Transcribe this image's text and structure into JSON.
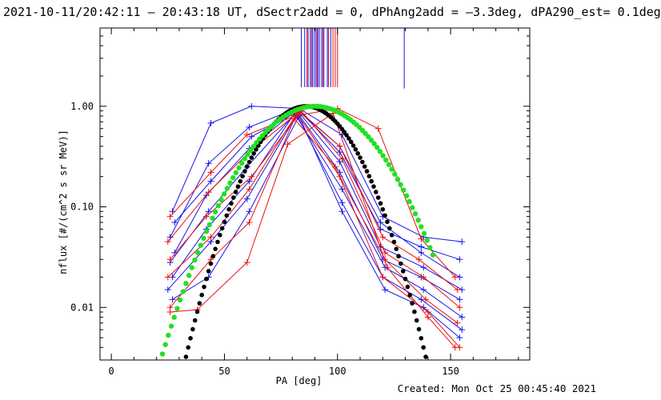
{
  "header": {
    "title": "2021-10-11/20:42:11 – 20:43:18 UT, dSectr2add = 0, dPhAng2add = –3.3deg, dPA290_est=  0.1deg"
  },
  "footer": {
    "created": "Created: Mon Oct 25 00:45:40 2021"
  },
  "chart_data": {
    "type": "line",
    "title": "",
    "xlabel": "PA [deg]",
    "ylabel": "nflux [#/(cm^2 s sr MeV)]",
    "xlim": [
      -5,
      185
    ],
    "ylim": [
      0.003,
      6.0
    ],
    "yscale": "log",
    "grid": false,
    "x_ticks": [
      0,
      50,
      100,
      150
    ],
    "x_tick_labels": [
      "0",
      "50",
      "100",
      "150"
    ],
    "y_ticks": [
      0.01,
      0.1,
      1.0
    ],
    "y_tick_labels": [
      "0.01",
      "0.10",
      "1.00"
    ],
    "colors": {
      "red": "#e81010",
      "blue": "#1616e8",
      "black": "#000000",
      "green": "#22e022"
    },
    "vertical_markers": [
      {
        "color": "blue",
        "x": [
          84,
          85.5,
          87,
          88,
          89,
          89.8,
          90.5,
          91.3,
          92,
          93,
          94,
          95.5,
          97,
          129.5
        ]
      },
      {
        "color": "red",
        "x": [
          86.5,
          88.5,
          91,
          93.5,
          96,
          98,
          99,
          100
        ]
      }
    ],
    "series": [
      {
        "color": "blue",
        "marker": "plus",
        "x": [
          27,
          44,
          62,
          83,
          102,
          120,
          138,
          155
        ],
        "y": [
          0.09,
          0.68,
          1.0,
          0.95,
          0.52,
          0.08,
          0.05,
          0.045
        ]
      },
      {
        "color": "blue",
        "marker": "plus",
        "x": [
          26,
          43,
          61,
          82,
          101,
          119,
          137,
          154
        ],
        "y": [
          0.05,
          0.27,
          0.62,
          0.95,
          0.35,
          0.06,
          0.04,
          0.03
        ]
      },
      {
        "color": "blue",
        "marker": "plus",
        "x": [
          28,
          42,
          61,
          82,
          101,
          119,
          138,
          155
        ],
        "y": [
          0.035,
          0.13,
          0.38,
          0.92,
          0.28,
          0.04,
          0.025,
          0.015
        ]
      },
      {
        "color": "blue",
        "marker": "plus",
        "x": [
          26,
          43,
          60,
          82,
          101,
          120,
          137,
          154
        ],
        "y": [
          0.028,
          0.09,
          0.25,
          0.88,
          0.22,
          0.03,
          0.02,
          0.012
        ]
      },
      {
        "color": "blue",
        "marker": "plus",
        "x": [
          27,
          42,
          61,
          81,
          102,
          121,
          138,
          155
        ],
        "y": [
          0.02,
          0.06,
          0.18,
          0.85,
          0.15,
          0.025,
          0.015,
          0.008
        ]
      },
      {
        "color": "blue",
        "marker": "plus",
        "x": [
          25,
          44,
          60,
          82,
          102,
          120,
          137,
          155
        ],
        "y": [
          0.015,
          0.045,
          0.12,
          0.82,
          0.11,
          0.02,
          0.012,
          0.006
        ]
      },
      {
        "color": "blue",
        "marker": "plus",
        "x": [
          27,
          43,
          61,
          83,
          102,
          121,
          138,
          154
        ],
        "y": [
          0.012,
          0.02,
          0.09,
          0.8,
          0.09,
          0.015,
          0.01,
          0.005
        ]
      },
      {
        "color": "blue",
        "marker": "plus",
        "x": [
          28,
          44,
          62,
          83,
          101,
          119,
          137,
          154
        ],
        "y": [
          0.07,
          0.18,
          0.5,
          0.9,
          0.4,
          0.07,
          0.035,
          0.02
        ]
      },
      {
        "color": "red",
        "marker": "plus",
        "x": [
          26,
          44,
          60,
          81,
          100,
          118,
          137,
          152
        ],
        "y": [
          0.08,
          0.22,
          0.52,
          0.8,
          0.95,
          0.6,
          0.048,
          0.02
        ]
      },
      {
        "color": "red",
        "marker": "plus",
        "x": [
          25,
          43,
          61,
          83,
          101,
          120,
          136,
          153
        ],
        "y": [
          0.045,
          0.14,
          0.35,
          0.88,
          0.4,
          0.05,
          0.03,
          0.015
        ]
      },
      {
        "color": "red",
        "marker": "plus",
        "x": [
          26,
          42,
          62,
          84,
          102,
          121,
          138,
          154
        ],
        "y": [
          0.03,
          0.08,
          0.2,
          0.9,
          0.3,
          0.035,
          0.02,
          0.01
        ]
      },
      {
        "color": "red",
        "marker": "plus",
        "x": [
          25,
          44,
          61,
          82,
          101,
          121,
          139,
          153
        ],
        "y": [
          0.02,
          0.05,
          0.15,
          0.85,
          0.2,
          0.03,
          0.012,
          0.007
        ]
      },
      {
        "color": "red",
        "marker": "plus",
        "x": [
          26,
          38,
          60,
          78,
          98,
          122,
          140,
          152
        ],
        "y": [
          0.009,
          0.0095,
          0.028,
          0.42,
          0.85,
          0.025,
          0.008,
          0.004
        ]
      },
      {
        "color": "red",
        "marker": "plus",
        "x": [
          26,
          44,
          61,
          81,
          99,
          120,
          140,
          154
        ],
        "y": [
          0.01,
          0.03,
          0.07,
          0.75,
          0.25,
          0.02,
          0.009,
          0.004
        ]
      },
      {
        "color": "black",
        "marker": "dot",
        "fit": {
          "peak": 1.0,
          "center": 86,
          "width": 22.13
        },
        "x_range": [
          20,
          143
        ],
        "step": 1.0
      },
      {
        "color": "green",
        "marker": "dot",
        "fit": {
          "peak": 1.0,
          "center": 90,
          "width": 28.3
        },
        "x_range": [
          20,
          143
        ],
        "step": 1.3
      }
    ]
  }
}
